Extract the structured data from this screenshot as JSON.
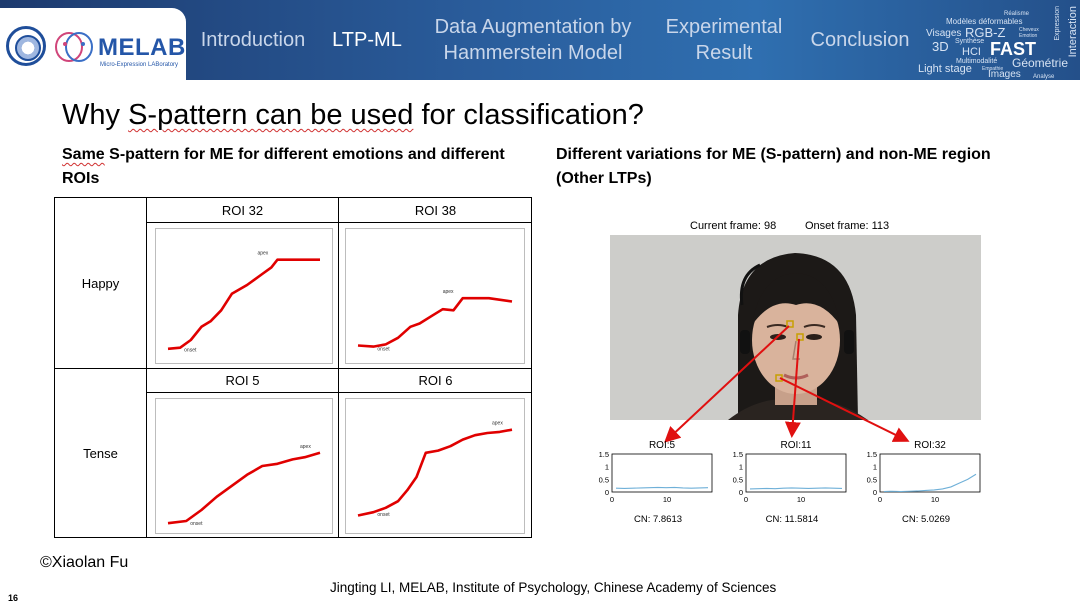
{
  "header": {
    "logo_text": "MELAB",
    "logo_subtitle": "Micro-Expression LABoratory",
    "nav": [
      {
        "label": "Introduction",
        "active": false
      },
      {
        "label": "LTP-ML",
        "active": true
      },
      {
        "label": "Data Augmentation by\nHammerstein Model",
        "active": false
      },
      {
        "label": "Experimental\nResult",
        "active": false
      },
      {
        "label": "Conclusion",
        "active": false
      }
    ],
    "wordcloud": [
      "Réalisme",
      "Modèles déformables",
      "Visages",
      "RGB-Z",
      "Géométrie",
      "3D",
      "Synthèse",
      "HCI",
      "FAST",
      "Multimodalité",
      "Light stage",
      "Images",
      "Analyse",
      "Interaction",
      "Expression",
      "Emotion",
      "Cheveux",
      "Empathie"
    ]
  },
  "slide": {
    "title_prefix": "Why ",
    "title_underlined": "S-pattern can be used",
    "title_suffix": " for classification?",
    "left_subtitle_underlined": "Same",
    "left_subtitle_rest": " S-pattern for ME for different emotions and different ROIs",
    "right_subtitle": "Different variations for ME (S-pattern) and non-ME region (Other LTPs)",
    "page_number": "16"
  },
  "table": {
    "rows": [
      {
        "label": "Happy",
        "cols": [
          {
            "roi": "ROI 32",
            "curve": [
              [
                0,
                0.02
              ],
              [
                0.08,
                0.03
              ],
              [
                0.15,
                0.1
              ],
              [
                0.22,
                0.22
              ],
              [
                0.28,
                0.27
              ],
              [
                0.35,
                0.37
              ],
              [
                0.42,
                0.52
              ],
              [
                0.52,
                0.6
              ],
              [
                0.62,
                0.7
              ],
              [
                0.68,
                0.76
              ],
              [
                0.72,
                0.83
              ],
              [
                0.85,
                0.83
              ],
              [
                1,
                0.83
              ]
            ]
          },
          {
            "roi": "ROI 38",
            "curve": [
              [
                0,
                0.05
              ],
              [
                0.1,
                0.04
              ],
              [
                0.18,
                0.06
              ],
              [
                0.26,
                0.12
              ],
              [
                0.34,
                0.22
              ],
              [
                0.4,
                0.25
              ],
              [
                0.48,
                0.32
              ],
              [
                0.55,
                0.38
              ],
              [
                0.62,
                0.37
              ],
              [
                0.68,
                0.48
              ],
              [
                0.85,
                0.48
              ],
              [
                1,
                0.45
              ]
            ]
          }
        ]
      },
      {
        "label": "Tense",
        "cols": [
          {
            "roi": "ROI 5",
            "curve": [
              [
                0,
                -0.02
              ],
              [
                0.12,
                0.0
              ],
              [
                0.22,
                0.1
              ],
              [
                0.32,
                0.22
              ],
              [
                0.42,
                0.32
              ],
              [
                0.52,
                0.42
              ],
              [
                0.62,
                0.5
              ],
              [
                0.72,
                0.52
              ],
              [
                0.82,
                0.56
              ],
              [
                0.9,
                0.58
              ],
              [
                1,
                0.62
              ]
            ]
          },
          {
            "roi": "ROI 6",
            "curve": [
              [
                0,
                0.05
              ],
              [
                0.1,
                0.08
              ],
              [
                0.18,
                0.12
              ],
              [
                0.26,
                0.18
              ],
              [
                0.32,
                0.28
              ],
              [
                0.38,
                0.4
              ],
              [
                0.44,
                0.62
              ],
              [
                0.52,
                0.64
              ],
              [
                0.6,
                0.68
              ],
              [
                0.68,
                0.74
              ],
              [
                0.76,
                0.78
              ],
              [
                0.84,
                0.8
              ],
              [
                0.92,
                0.81
              ],
              [
                1,
                0.83
              ]
            ]
          }
        ]
      }
    ],
    "annot_apex": "apex",
    "annot_onset": "onset"
  },
  "figure": {
    "current_frame_label": "Current frame: 98",
    "onset_frame_label": "Onset frame: 113",
    "roi_plots": [
      {
        "name": "ROI:5",
        "cn": "CN: 7.8613",
        "y": [
          0.15,
          0.14,
          0.15,
          0.16,
          0.17,
          0.18,
          0.17,
          0.18,
          0.16,
          0.15,
          0.16,
          0.17
        ]
      },
      {
        "name": "ROI:11",
        "cn": "CN: 11.5814",
        "y": [
          0.12,
          0.13,
          0.14,
          0.13,
          0.15,
          0.16,
          0.15,
          0.14,
          0.15,
          0.16,
          0.15,
          0.14
        ]
      },
      {
        "name": "ROI:32",
        "cn": "CN: 5.0269",
        "y": [
          0.02,
          0.03,
          0.02,
          0.03,
          0.04,
          0.06,
          0.08,
          0.12,
          0.2,
          0.35,
          0.5,
          0.7
        ]
      }
    ],
    "y_ticks": [
      "1.5",
      "1",
      "0.5",
      "0"
    ],
    "x_ticks": [
      "0",
      "10"
    ],
    "marker_color": "#c8a000",
    "arrow_color": "#e01010",
    "line_color": "#6fb0d8"
  },
  "footer": {
    "copyright": "©Xiaolan Fu",
    "credit": "Jingting LI, MELAB, Institute of Psychology, Chinese Academy of Sciences"
  },
  "colors": {
    "curve": "#e00000",
    "header_dark": "#1d3a6e",
    "header_light": "#2f6fb0"
  }
}
